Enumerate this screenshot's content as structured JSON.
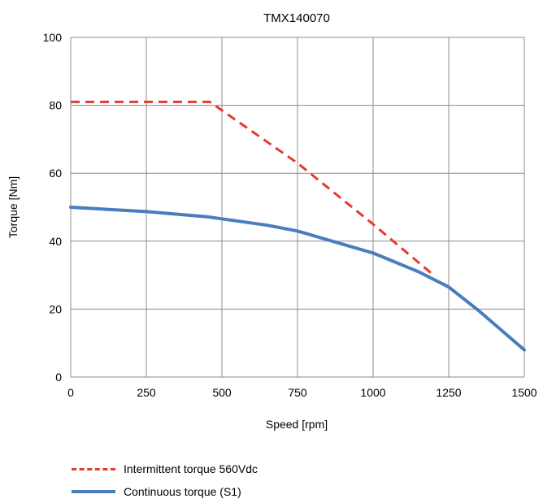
{
  "colors": {
    "intermittent": "#e8392c",
    "continuous": "#4a7dbd",
    "grid": "#8c8c8c"
  },
  "chart_data": {
    "type": "line",
    "title": "TMX140070",
    "xlabel": "Speed [rpm]",
    "ylabel": "Torque [Nm]",
    "xlim": [
      0,
      1500
    ],
    "ylim": [
      0,
      100
    ],
    "xticks": [
      0,
      250,
      500,
      750,
      1000,
      1250,
      1500
    ],
    "yticks": [
      0,
      20,
      40,
      60,
      80,
      100
    ],
    "grid": true,
    "legend_position": "bottom",
    "series": [
      {
        "name": "Intermittent torque 560Vdc",
        "style": "dashed",
        "x": [
          0,
          460,
          750,
          1000,
          1200
        ],
        "y": [
          81,
          81,
          63,
          45,
          30
        ]
      },
      {
        "name": "Continuous torque (S1)",
        "style": "solid",
        "x": [
          0,
          250,
          450,
          650,
          750,
          1000,
          1150,
          1250,
          1350,
          1500
        ],
        "y": [
          50,
          48.7,
          47.2,
          44.7,
          43,
          36.5,
          31,
          26.5,
          19.5,
          8
        ]
      }
    ]
  }
}
